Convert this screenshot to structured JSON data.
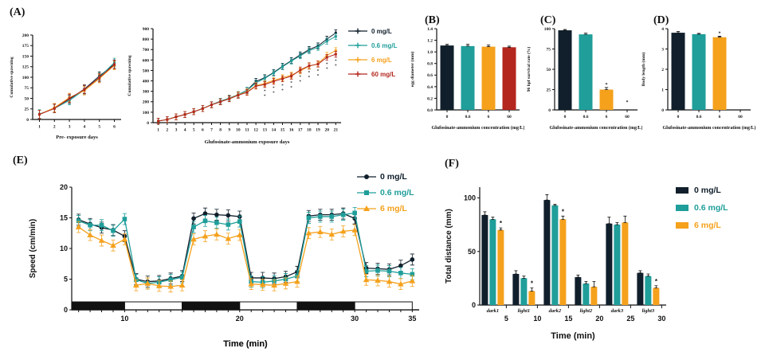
{
  "panels": {
    "a": "(A)",
    "b": "(B)",
    "c": "(C)",
    "d": "(D)",
    "e": "(E)",
    "f": "(F)"
  },
  "colors": {
    "dose0": "#101f2b",
    "dose06": "#1f9e9a",
    "dose6": "#f5a11c",
    "dose60": "#b3271e",
    "axis": "#111111"
  },
  "chart_data": [
    {
      "id": "a1",
      "type": "line",
      "xlabel": "Pre- exposure days",
      "ylabel": "Cumulative spawning",
      "x": [
        1,
        2,
        3,
        4,
        5,
        6
      ],
      "ylim": [
        0,
        200
      ],
      "yticks": [
        0,
        25,
        50,
        75,
        100,
        125,
        150,
        175,
        200
      ],
      "err": 10,
      "series": [
        {
          "name": "0 mg/L",
          "color": "#101f2b",
          "marker": "square",
          "values": [
            12,
            27,
            48,
            72,
            103,
            131
          ]
        },
        {
          "name": "0.6 mg/L",
          "color": "#1f9e9a",
          "marker": "square",
          "values": [
            13,
            26,
            45,
            70,
            100,
            135
          ]
        },
        {
          "name": "6 mg/L",
          "color": "#f5a11c",
          "marker": "square",
          "values": [
            12,
            28,
            52,
            68,
            97,
            128
          ]
        },
        {
          "name": "60 mg/L",
          "color": "#b3271e",
          "marker": "square",
          "values": [
            12,
            26,
            50,
            71,
            99,
            130
          ]
        }
      ]
    },
    {
      "id": "a2",
      "type": "line",
      "xlabel": "Glufosinate-ammonium exposure days",
      "ylabel": "Cumulative spawning",
      "x": [
        1,
        2,
        3,
        4,
        5,
        6,
        7,
        8,
        9,
        10,
        11,
        12,
        13,
        14,
        15,
        16,
        17,
        18,
        19,
        20,
        21
      ],
      "ylim": [
        0,
        900
      ],
      "yticks": [
        0,
        100,
        200,
        300,
        400,
        500,
        600,
        700,
        800,
        900
      ],
      "err": 28,
      "sig_days": [
        13,
        14,
        15,
        16,
        17,
        18,
        19,
        20,
        21
      ],
      "sig_symbol": "*",
      "series": [
        {
          "name": "0 mg/L",
          "color": "#101f2b",
          "marker": "square",
          "values": [
            15,
            30,
            55,
            78,
            105,
            135,
            172,
            205,
            235,
            268,
            310,
            395,
            430,
            480,
            540,
            595,
            650,
            700,
            735,
            800,
            860
          ]
        },
        {
          "name": "0.6 mg/L",
          "color": "#1f9e9a",
          "marker": "square",
          "values": [
            15,
            30,
            55,
            78,
            105,
            135,
            172,
            205,
            235,
            268,
            308,
            380,
            425,
            475,
            535,
            590,
            640,
            690,
            720,
            780,
            825
          ]
        },
        {
          "name": "6 mg/L",
          "color": "#f5a11c",
          "marker": "square",
          "values": [
            15,
            30,
            55,
            78,
            105,
            135,
            170,
            200,
            230,
            265,
            295,
            355,
            375,
            405,
            430,
            455,
            495,
            540,
            565,
            645,
            690
          ]
        },
        {
          "name": "60 mg/L",
          "color": "#b3271e",
          "marker": "square",
          "values": [
            15,
            30,
            55,
            78,
            105,
            135,
            170,
            200,
            228,
            262,
            290,
            350,
            365,
            395,
            420,
            445,
            505,
            545,
            560,
            625,
            655
          ]
        }
      ]
    },
    {
      "id": "b",
      "type": "bar",
      "xlabel": "Glufosinate-ammonium concentration (mg/L)",
      "ylabel": "egg diameter (mm)",
      "categories": [
        "0",
        "0.6",
        "6",
        "60"
      ],
      "values": [
        1.11,
        1.1,
        1.09,
        1.08
      ],
      "errors": [
        0.02,
        0.03,
        0.03,
        0.02
      ],
      "sig": [
        "",
        "",
        "",
        ""
      ],
      "colors": [
        "#101f2b",
        "#1f9e9a",
        "#f5a11c",
        "#b3271e"
      ],
      "ylim": [
        0,
        1.4
      ],
      "yticks": [
        0.0,
        0.2,
        0.4,
        0.6,
        0.8,
        1.0,
        1.2,
        1.4
      ],
      "ytick_decimals": 1
    },
    {
      "id": "c",
      "type": "bar",
      "xlabel": "Glufosinate-ammonium concentration (mg/L)",
      "ylabel": "96 hpf survival rate (%)",
      "categories": [
        "0",
        "0.6",
        "6",
        "60"
      ],
      "values": [
        98,
        93,
        25,
        0
      ],
      "errors": [
        1,
        1.5,
        2.5,
        0
      ],
      "sig": [
        "",
        "",
        "*",
        "*"
      ],
      "colors": [
        "#101f2b",
        "#1f9e9a",
        "#f5a11c",
        "#b3271e"
      ],
      "ylim": [
        0,
        100
      ],
      "yticks": [
        0,
        25,
        50,
        75,
        100
      ],
      "ytick_decimals": 0
    },
    {
      "id": "d",
      "type": "bar",
      "xlabel": "Glufosinate-ammonium concentration (mg/L)",
      "ylabel": "Body length (mm)",
      "categories": [
        "0",
        "0.6",
        "6",
        "60"
      ],
      "values": [
        3.8,
        3.73,
        3.58,
        null
      ],
      "errors": [
        0.06,
        0.04,
        0.05,
        0
      ],
      "sig": [
        "",
        "",
        "*",
        ""
      ],
      "colors": [
        "#101f2b",
        "#1f9e9a",
        "#f5a11c",
        "#b3271e"
      ],
      "ylim": [
        0,
        4
      ],
      "yticks": [
        0,
        1,
        2,
        3,
        4
      ],
      "ytick_decimals": 0
    },
    {
      "id": "e",
      "type": "line",
      "xlabel": "Time (min)",
      "ylabel": "Speed (cm/min)",
      "x": [
        6,
        7,
        8,
        9,
        10,
        11,
        12,
        13,
        14,
        15,
        16,
        17,
        18,
        19,
        20,
        21,
        22,
        23,
        24,
        25,
        26,
        27,
        28,
        29,
        30,
        31,
        32,
        33,
        34,
        35
      ],
      "xtick_labels": [
        10,
        20,
        30,
        35
      ],
      "ylim": [
        0,
        20
      ],
      "yticks": [
        0,
        5,
        10,
        15,
        20
      ],
      "err": 0.9,
      "photoperiod": [
        {
          "start": 5.4,
          "end": 10,
          "phase": "dark"
        },
        {
          "start": 10,
          "end": 15,
          "phase": "light"
        },
        {
          "start": 15,
          "end": 20,
          "phase": "dark"
        },
        {
          "start": 20,
          "end": 25,
          "phase": "light"
        },
        {
          "start": 25,
          "end": 30,
          "phase": "dark"
        },
        {
          "start": 30,
          "end": 35,
          "phase": "light"
        }
      ],
      "series": [
        {
          "name": "0 mg/L",
          "color": "#101f2b",
          "marker": "circle",
          "values": [
            14.7,
            14.0,
            13.4,
            13.0,
            12.0,
            5.0,
            4.6,
            4.7,
            5.1,
            5.5,
            14.9,
            15.7,
            15.5,
            15.4,
            15.2,
            5.2,
            5.2,
            5.1,
            5.4,
            6.2,
            15.3,
            15.5,
            15.5,
            15.7,
            14.9,
            6.8,
            6.7,
            6.6,
            7.2,
            8.2
          ]
        },
        {
          "name": "0.6 mg/L",
          "color": "#1f9e9a",
          "marker": "square",
          "values": [
            14.5,
            13.8,
            13.8,
            12.9,
            14.8,
            4.9,
            4.3,
            4.5,
            4.9,
            5.3,
            13.5,
            14.5,
            14.2,
            13.9,
            14.4,
            4.6,
            4.5,
            4.7,
            5.0,
            5.5,
            15.0,
            15.2,
            15.2,
            15.5,
            15.8,
            6.3,
            6.4,
            6.3,
            6.0,
            5.8
          ]
        },
        {
          "name": "6 mg/L",
          "color": "#f5a11c",
          "marker": "triangle",
          "values": [
            13.5,
            12.2,
            11.3,
            10.5,
            11.5,
            4.0,
            4.3,
            3.9,
            3.8,
            4.0,
            11.5,
            12.0,
            12.3,
            11.6,
            12.2,
            4.2,
            4.1,
            4.0,
            4.3,
            4.6,
            12.5,
            12.7,
            12.3,
            12.8,
            13.0,
            4.9,
            4.8,
            4.6,
            4.2,
            4.7
          ]
        }
      ]
    },
    {
      "id": "f",
      "type": "groupbar",
      "xlabel": "Time (min)",
      "ylabel": "Total distance (mm)",
      "categories": [
        "dark1",
        "light1",
        "dark2",
        "light2",
        "dark3",
        "light3"
      ],
      "tick_numbers": [
        5,
        10,
        15,
        20,
        25,
        30
      ],
      "ylim": [
        0,
        110
      ],
      "yticks": [
        0,
        50,
        100
      ],
      "series": [
        {
          "name": "0 mg/L",
          "color": "#101f2b",
          "values": [
            84,
            29,
            98,
            26,
            76,
            30
          ],
          "errors": [
            3,
            3,
            5,
            2,
            6,
            2
          ],
          "sig": [
            "",
            "",
            "",
            "",
            "",
            ""
          ]
        },
        {
          "name": "0.6 mg/L",
          "color": "#1f9e9a",
          "values": [
            80,
            25,
            93,
            20,
            75,
            27
          ],
          "errors": [
            2,
            2,
            1,
            2,
            2,
            2
          ],
          "sig": [
            "",
            "",
            "",
            "",
            "",
            ""
          ]
        },
        {
          "name": "6 mg/L",
          "color": "#f5a11c",
          "values": [
            70,
            13,
            80,
            17,
            77,
            16
          ],
          "errors": [
            2,
            3,
            3,
            5,
            6,
            2
          ],
          "sig": [
            "*",
            "*",
            "*",
            "",
            "",
            "*"
          ]
        }
      ]
    }
  ]
}
